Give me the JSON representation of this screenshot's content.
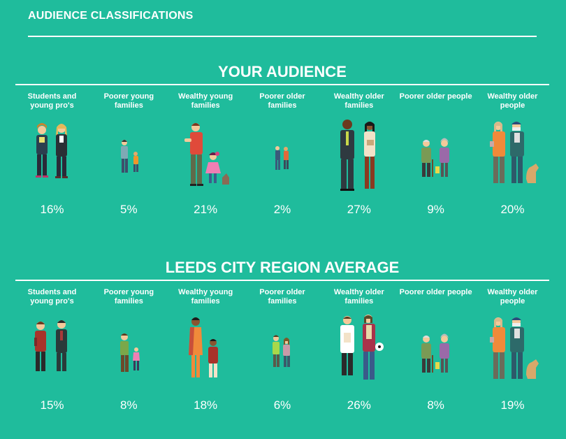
{
  "page": {
    "title": "AUDIENCE CLASSIFICATIONS"
  },
  "your_audience": {
    "title": "YOUR AUDIENCE",
    "items": [
      {
        "label": "Students and young pro's",
        "percent": "16%",
        "icon": "students-illustration"
      },
      {
        "label": "Poorer young families",
        "percent": "5%",
        "icon": "poorer-young-family-illustration"
      },
      {
        "label": "Wealthy young families",
        "percent": "21%",
        "icon": "wealthy-young-family-illustration"
      },
      {
        "label": "Poorer older families",
        "percent": "2%",
        "icon": "poorer-older-family-illustration"
      },
      {
        "label": "Wealthy older families",
        "percent": "27%",
        "icon": "wealthy-older-family-illustration"
      },
      {
        "label": "Poorer older people",
        "percent": "9%",
        "icon": "poorer-older-people-illustration"
      },
      {
        "label": "Wealthy older people",
        "percent": "20%",
        "icon": "wealthy-older-people-illustration"
      }
    ]
  },
  "leeds_average": {
    "title": "LEEDS CITY REGION AVERAGE",
    "items": [
      {
        "label": "Students and young pro's",
        "percent": "15%",
        "icon": "students-illustration"
      },
      {
        "label": "Poorer young families",
        "percent": "8%",
        "icon": "poorer-young-family-illustration"
      },
      {
        "label": "Wealthy young families",
        "percent": "18%",
        "icon": "wealthy-young-family-illustration"
      },
      {
        "label": "Poorer older families",
        "percent": "6%",
        "icon": "poorer-older-family-illustration"
      },
      {
        "label": "Wealthy older families",
        "percent": "26%",
        "icon": "wealthy-older-family-illustration"
      },
      {
        "label": "Poorer older people",
        "percent": "8%",
        "icon": "poorer-older-people-illustration"
      },
      {
        "label": "Wealthy older people",
        "percent": "19%",
        "icon": "wealthy-older-people-illustration"
      }
    ]
  },
  "colors": {
    "background": "#1fbc9c",
    "text": "#ffffff"
  }
}
